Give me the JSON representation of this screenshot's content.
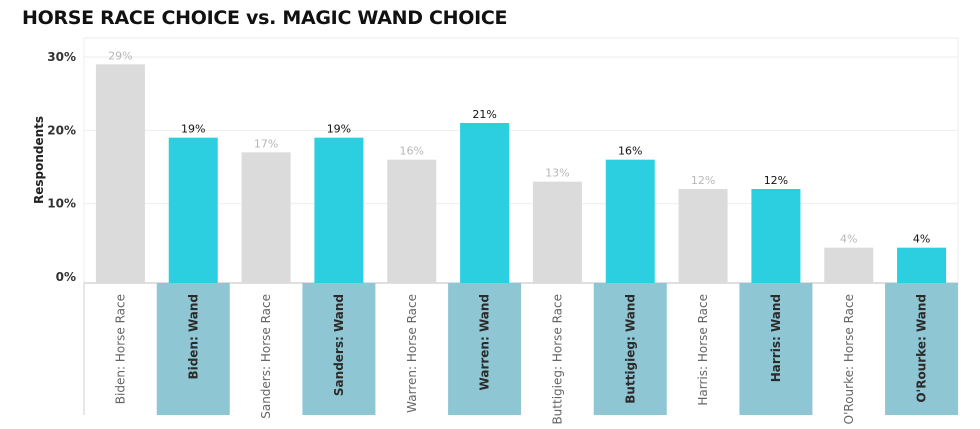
{
  "chart_data": {
    "type": "bar",
    "title": "HORSE RACE CHOICE vs. MAGIC WAND CHOICE",
    "xlabel": "",
    "ylabel": "Respondents",
    "ylim": [
      0,
      30
    ],
    "yticks": [
      "0%",
      "10%",
      "20%",
      "30%"
    ],
    "grid": true,
    "categories": [
      "Biden: Horse Race",
      "Biden: Wand",
      "Sanders: Horse Race",
      "Sanders: Wand",
      "Warren: Horse Race",
      "Warren: Wand",
      "Buttigieg: Horse Race",
      "Buttigieg: Wand",
      "Harris: Horse Race",
      "Harris: Wand",
      "O'Rourke: Horse Race",
      "O'Rourke: Wand"
    ],
    "values": [
      29,
      19,
      17,
      19,
      16,
      21,
      13,
      16,
      12,
      12,
      4,
      4
    ],
    "value_labels": [
      "29%",
      "19%",
      "17%",
      "19%",
      "16%",
      "21%",
      "13%",
      "16%",
      "12%",
      "12%",
      "4%",
      "4%"
    ],
    "kinds": [
      "horse",
      "wand",
      "horse",
      "wand",
      "horse",
      "wand",
      "horse",
      "wand",
      "horse",
      "wand",
      "horse",
      "wand"
    ],
    "colors": {
      "horse_bar": "#dcdbdc",
      "wand_bar": "#2bcfe0",
      "wand_label_band": "#8ec6d3",
      "grid": "#eeeeee",
      "axis": "#cccccc"
    }
  }
}
